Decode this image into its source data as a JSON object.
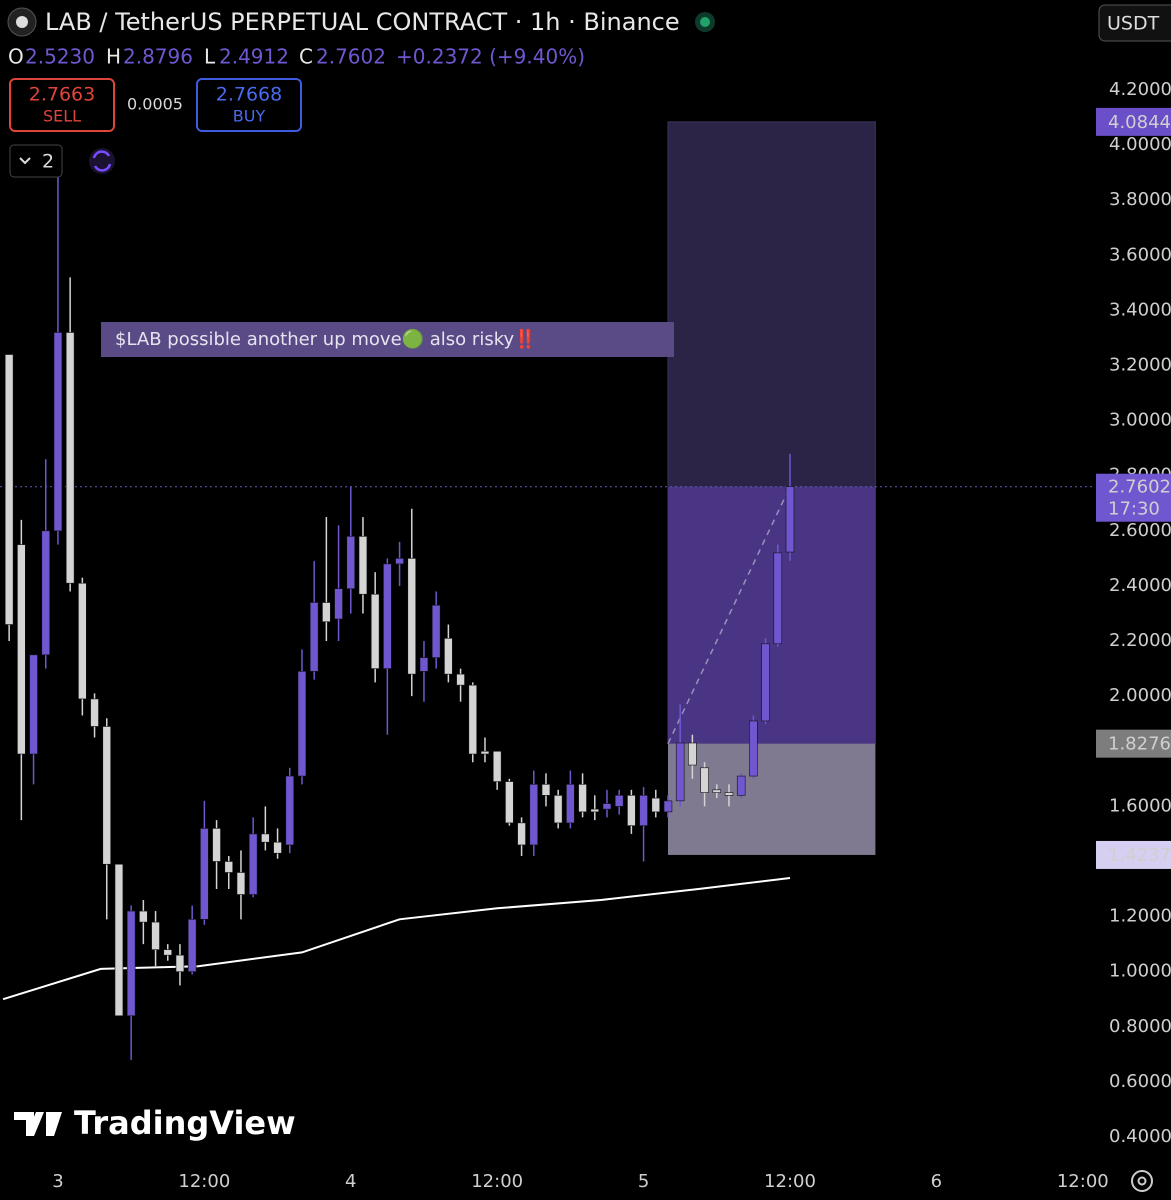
{
  "chart_data": {
    "type": "candlestick",
    "title": "LAB / TetherUS PERPETUAL CONTRACT · 1h · Binance",
    "currency": "USDT",
    "legend": [
      {
        "key": "O",
        "value": "2.5230"
      },
      {
        "key": "H",
        "value": "2.8796"
      },
      {
        "key": "L",
        "value": "2.4912"
      },
      {
        "key": "C",
        "value": "2.7602"
      }
    ],
    "change": "+0.2372 (+9.40%)",
    "sell": {
      "price": "2.7663",
      "label": "SELL"
    },
    "spread": "0.0005",
    "buy": {
      "price": "2.7668",
      "label": "BUY"
    },
    "indicators_count": 2,
    "annotation": "$LAB possible another up move🟢 also risky‼️",
    "watermark": "TradingView",
    "up_color": "#7057d0",
    "down_color": "#d4d4d4",
    "x": [
      -4,
      -3,
      -2,
      -1,
      0,
      1,
      2,
      3,
      4,
      5,
      6,
      7,
      8,
      9,
      10,
      11,
      12,
      13,
      14,
      15,
      16,
      17,
      18,
      19,
      20,
      21,
      22,
      23,
      24,
      25,
      26,
      27,
      28,
      29,
      30,
      31,
      32,
      33,
      34,
      35,
      36,
      37,
      38,
      39,
      40,
      41,
      42,
      43,
      44,
      45,
      46,
      47,
      48,
      49,
      50,
      51,
      52,
      53,
      54,
      55,
      56,
      57,
      58,
      59,
      60
    ],
    "open": [
      3.24,
      2.55,
      1.79,
      2.15,
      2.6,
      3.32,
      2.41,
      1.99,
      1.89,
      1.39,
      0.84,
      1.22,
      1.18,
      1.08,
      1.06,
      1.0,
      1.19,
      1.52,
      1.4,
      1.36,
      1.28,
      1.5,
      1.47,
      1.46,
      1.71,
      2.09,
      2.34,
      2.28,
      2.39,
      2.58,
      2.37,
      2.1,
      2.48,
      2.5,
      2.09,
      2.14,
      2.21,
      2.08,
      2.04,
      1.8,
      1.8,
      1.69,
      1.54,
      1.46,
      1.68,
      1.64,
      1.54,
      1.68,
      1.59,
      1.59,
      1.6,
      1.64,
      1.53,
      1.63,
      1.58,
      1.62,
      1.83,
      1.74,
      1.66,
      1.65,
      1.64,
      1.71,
      1.91,
      2.19,
      2.523
    ],
    "high": [
      3.24,
      2.64,
      2.15,
      2.86,
      3.89,
      3.52,
      2.43,
      2.01,
      1.92,
      1.39,
      1.24,
      1.26,
      1.22,
      1.1,
      1.1,
      1.24,
      1.62,
      1.55,
      1.42,
      1.44,
      1.56,
      1.6,
      1.52,
      1.74,
      2.17,
      2.49,
      2.65,
      2.62,
      2.76,
      2.65,
      2.45,
      2.5,
      2.56,
      2.68,
      2.2,
      2.38,
      2.26,
      2.1,
      2.05,
      1.85,
      1.8,
      1.7,
      1.56,
      1.73,
      1.72,
      1.66,
      1.73,
      1.72,
      1.64,
      1.66,
      1.66,
      1.66,
      1.67,
      1.66,
      1.64,
      1.97,
      1.86,
      1.76,
      1.68,
      1.68,
      1.72,
      1.93,
      2.21,
      2.55,
      2.8796
    ],
    "low": [
      2.2,
      1.55,
      1.68,
      2.1,
      2.55,
      2.38,
      1.93,
      1.85,
      1.19,
      0.84,
      0.68,
      1.1,
      1.02,
      1.04,
      0.95,
      0.99,
      1.17,
      1.3,
      1.3,
      1.19,
      1.27,
      1.44,
      1.41,
      1.43,
      1.68,
      2.06,
      2.2,
      2.2,
      2.3,
      2.3,
      2.05,
      1.86,
      2.4,
      2.0,
      1.98,
      2.1,
      2.05,
      1.98,
      1.76,
      1.76,
      1.66,
      1.53,
      1.42,
      1.42,
      1.6,
      1.52,
      1.52,
      1.56,
      1.55,
      1.56,
      1.57,
      1.5,
      1.4,
      1.56,
      1.56,
      1.6,
      1.7,
      1.6,
      1.63,
      1.6,
      1.63,
      1.7,
      1.9,
      2.18,
      2.4912
    ],
    "close": [
      2.26,
      1.79,
      2.15,
      2.6,
      3.32,
      2.41,
      1.99,
      1.89,
      1.39,
      0.84,
      1.22,
      1.18,
      1.08,
      1.06,
      1.0,
      1.19,
      1.52,
      1.4,
      1.36,
      1.28,
      1.5,
      1.47,
      1.43,
      1.71,
      2.09,
      2.34,
      2.27,
      2.39,
      2.58,
      2.37,
      2.1,
      2.48,
      2.5,
      2.08,
      2.14,
      2.33,
      2.08,
      2.04,
      1.79,
      1.79,
      1.69,
      1.54,
      1.46,
      1.68,
      1.64,
      1.54,
      1.68,
      1.58,
      1.58,
      1.61,
      1.64,
      1.53,
      1.64,
      1.58,
      1.62,
      1.83,
      1.75,
      1.65,
      1.65,
      1.64,
      1.71,
      1.91,
      2.19,
      2.52,
      2.7602
    ],
    "ma": {
      "color": "#ffffff",
      "x": [
        -4.5,
        3.5,
        11.5,
        20,
        28,
        36,
        44.5,
        52.5,
        60
      ],
      "values": [
        0.9,
        1.01,
        1.02,
        1.07,
        1.19,
        1.23,
        1.26,
        1.3,
        1.34
      ]
    },
    "position": {
      "x": [
        50,
        67
      ],
      "target": 4.0844,
      "entry": 1.8276,
      "stop": 1.4237,
      "profit_color": "#2b2446",
      "filled_color": "#4a3584",
      "loss_color": "#7f7a90"
    },
    "last_price": 2.7602,
    "countdown": "17:30",
    "grid": false,
    "xlim": [
      -4.75,
      85
    ],
    "xticks": [
      {
        "value": 0,
        "label": "3"
      },
      {
        "value": 12,
        "label": "12:00"
      },
      {
        "value": 24,
        "label": "4"
      },
      {
        "value": 36,
        "label": "12:00"
      },
      {
        "value": 48,
        "label": "5"
      },
      {
        "value": 60,
        "label": "12:00"
      },
      {
        "value": 72,
        "label": "6"
      },
      {
        "value": 84,
        "label": "12:00"
      }
    ],
    "ylim": [
      0.3165,
      4.5267
    ],
    "yticks": [
      {
        "value": 4.2,
        "label": "4.2000"
      },
      {
        "value": 4.0,
        "label": "4.0000"
      },
      {
        "value": 3.8,
        "label": "3.8000"
      },
      {
        "value": 3.6,
        "label": "3.6000"
      },
      {
        "value": 3.4,
        "label": "3.4000"
      },
      {
        "value": 3.2,
        "label": "3.2000"
      },
      {
        "value": 3.0,
        "label": "3.0000"
      },
      {
        "value": 2.8,
        "label": "2.8000"
      },
      {
        "value": 2.6,
        "label": "2.6000"
      },
      {
        "value": 2.4,
        "label": "2.4000"
      },
      {
        "value": 2.2,
        "label": "2.2000"
      },
      {
        "value": 2.0,
        "label": "2.0000"
      },
      {
        "value": 1.6,
        "label": "1.6000"
      },
      {
        "value": 1.2,
        "label": "1.2000"
      },
      {
        "value": 1.0,
        "label": "1.0000"
      },
      {
        "value": 0.8,
        "label": "0.8000"
      },
      {
        "value": 0.6,
        "label": "0.6000"
      },
      {
        "value": 0.4,
        "label": "0.4000"
      }
    ]
  }
}
